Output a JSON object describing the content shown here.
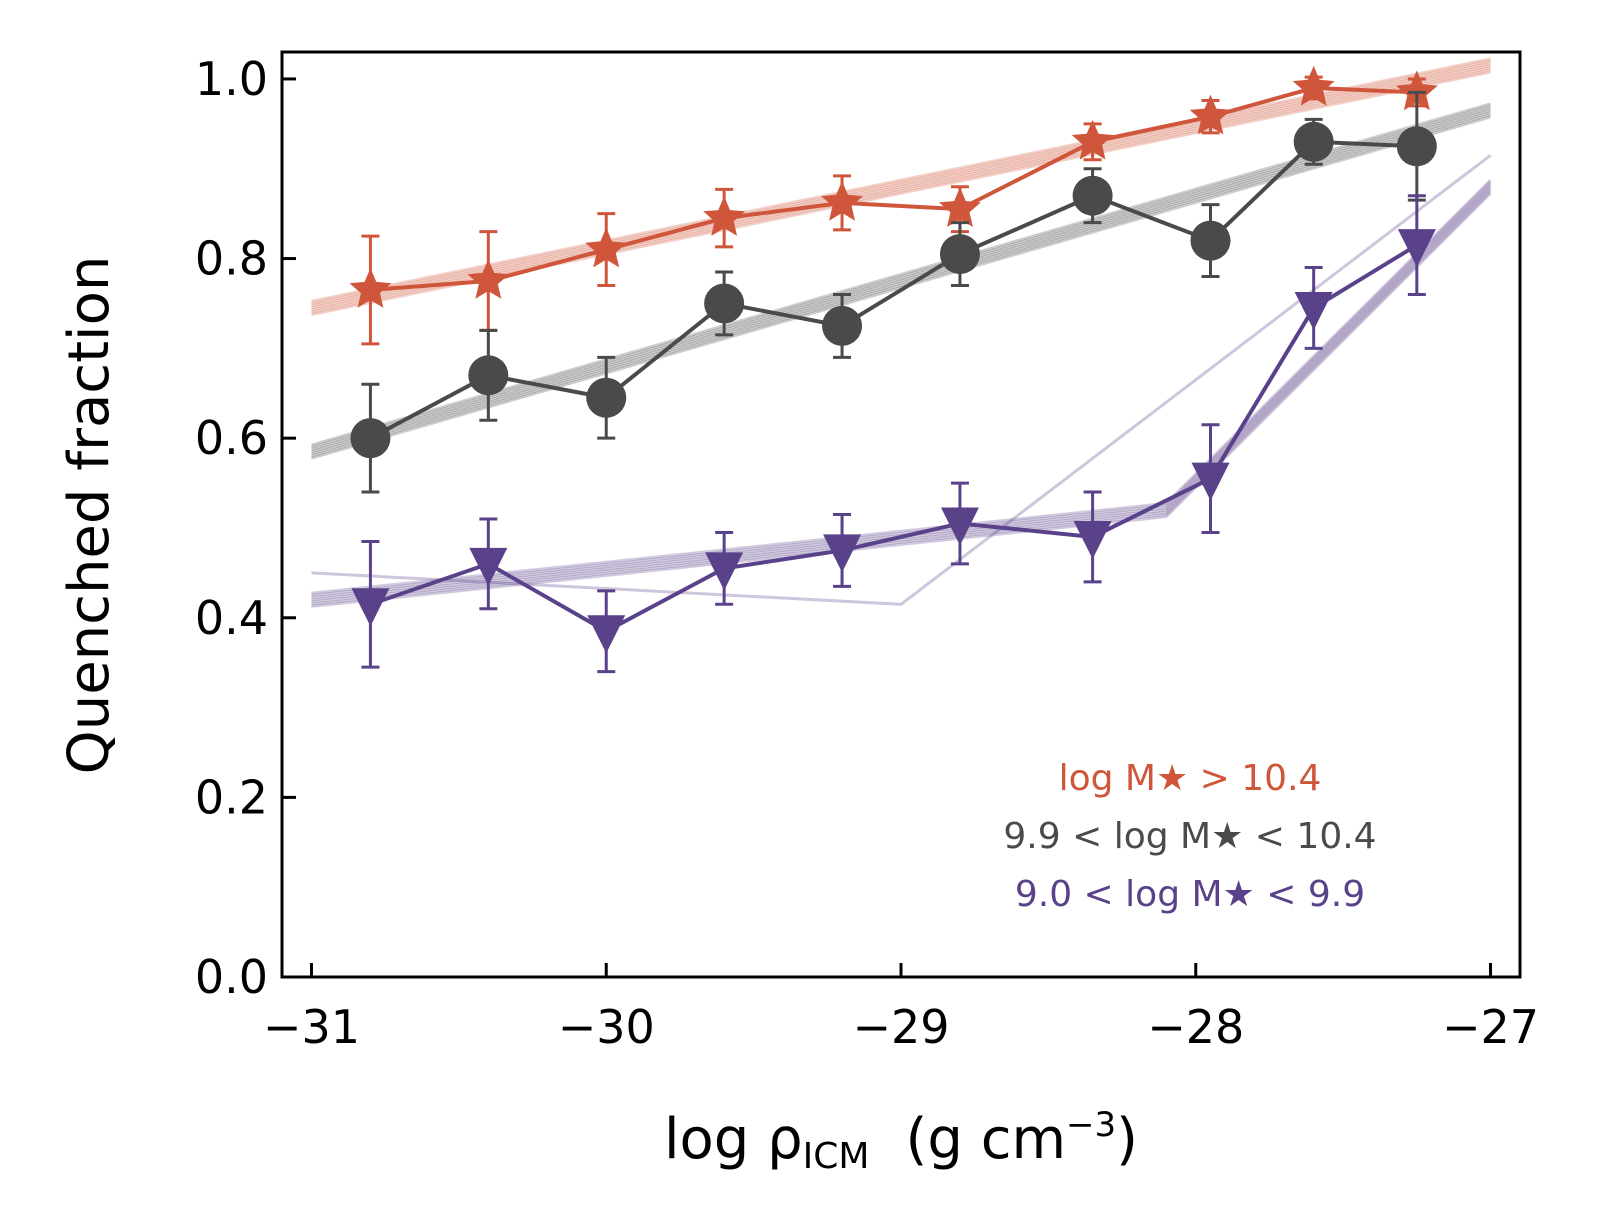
{
  "chart_data": {
    "type": "line",
    "ylabel": "Quenched fraction",
    "xlabel": "log ρ",
    "xlabel_sub": "ICM",
    "xlabel_units": "(g cm",
    "xlabel_units_exp": "−3",
    "xlabel_units_close": ")",
    "xlim": [
      -31.1,
      -26.9
    ],
    "ylim": [
      0.0,
      1.03
    ],
    "xticks": [
      -31,
      -30,
      -29,
      -28,
      -27
    ],
    "xtick_labels": [
      "−31",
      "−30",
      "−29",
      "−28",
      "−27"
    ],
    "yticks": [
      0.0,
      0.2,
      0.4,
      0.6,
      0.8,
      1.0
    ],
    "ytick_labels": [
      "0.0",
      "0.2",
      "0.4",
      "0.6",
      "0.8",
      "1.0"
    ],
    "legend_position": "lower-right",
    "series": [
      {
        "name": "log M★ > 10.4",
        "color": "#d0563b",
        "marker": "star",
        "x": [
          -30.8,
          -30.4,
          -30.0,
          -29.6,
          -29.2,
          -28.8,
          -28.35,
          -27.95,
          -27.6,
          -27.25
        ],
        "y": [
          0.765,
          0.775,
          0.81,
          0.845,
          0.862,
          0.855,
          0.93,
          0.958,
          0.99,
          0.985
        ],
        "err": [
          0.06,
          0.055,
          0.04,
          0.032,
          0.03,
          0.025,
          0.02,
          0.018,
          0.012,
          0.015
        ],
        "fit_x": [
          -31.0,
          -27.0
        ],
        "fit_y": [
          0.745,
          1.015
        ]
      },
      {
        "name": "9.9 < log M★ < 10.4",
        "color": "#4a4a4a",
        "marker": "circle",
        "x": [
          -30.8,
          -30.4,
          -30.0,
          -29.6,
          -29.2,
          -28.8,
          -28.35,
          -27.95,
          -27.6,
          -27.25
        ],
        "y": [
          0.6,
          0.67,
          0.645,
          0.75,
          0.725,
          0.805,
          0.87,
          0.82,
          0.93,
          0.925
        ],
        "err": [
          0.06,
          0.05,
          0.045,
          0.035,
          0.035,
          0.035,
          0.03,
          0.04,
          0.025,
          0.06
        ],
        "fit_x": [
          -31.0,
          -27.0
        ],
        "fit_y": [
          0.585,
          0.965
        ]
      },
      {
        "name": "9.0 < log M★ < 9.9",
        "color": "#5a428a",
        "marker": "triangle-down",
        "x": [
          -30.8,
          -30.4,
          -30.0,
          -29.6,
          -29.2,
          -28.8,
          -28.35,
          -27.95,
          -27.6,
          -27.25
        ],
        "y": [
          0.415,
          0.46,
          0.385,
          0.455,
          0.475,
          0.505,
          0.49,
          0.555,
          0.745,
          0.815
        ],
        "err": [
          0.07,
          0.05,
          0.045,
          0.04,
          0.04,
          0.045,
          0.05,
          0.06,
          0.045,
          0.055
        ],
        "fit_x": [
          -31.0,
          -28.1,
          -27.0
        ],
        "fit_y": [
          0.42,
          0.52,
          0.88
        ],
        "fit_alt_x": [
          -31.0,
          -29.0,
          -27.0
        ],
        "fit_alt_y": [
          0.45,
          0.415,
          0.915
        ]
      }
    ]
  }
}
